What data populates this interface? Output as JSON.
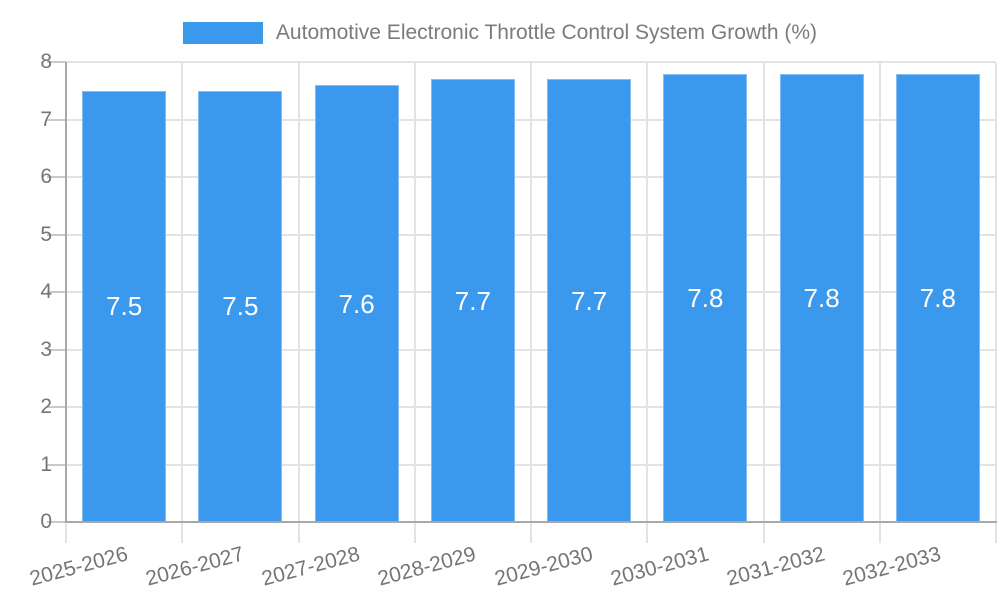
{
  "chart_data": {
    "type": "bar",
    "title": "Automotive Electronic Throttle Control System Growth (%)",
    "legend_position": "top",
    "categories": [
      "2025-2026",
      "2026-2027",
      "2027-2028",
      "2028-2029",
      "2029-2030",
      "2030-2031",
      "2031-2032",
      "2032-2033"
    ],
    "values": [
      7.5,
      7.5,
      7.6,
      7.7,
      7.7,
      7.8,
      7.8,
      7.8
    ],
    "value_labels": [
      "7.5",
      "7.5",
      "7.6",
      "7.7",
      "7.7",
      "7.8",
      "7.8",
      "7.8"
    ],
    "xlabel": "",
    "ylabel": "",
    "ylim": [
      0,
      8
    ],
    "y_ticks": [
      0,
      1,
      2,
      3,
      4,
      5,
      6,
      7,
      8
    ],
    "grid": true,
    "colors": {
      "bar": "#3a99ec",
      "bar_border": "#85bdf2",
      "bar_value_text": "#ffffff",
      "gridline": "#e3e3e3",
      "axis_line": "#a8a8a8",
      "tick_label": "#757575",
      "legend_text": "#7b7b7b",
      "background": "#ffffff"
    }
  }
}
